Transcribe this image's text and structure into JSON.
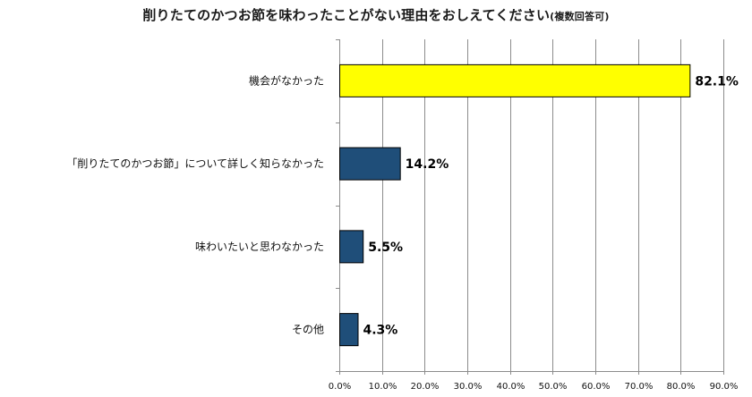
{
  "title": {
    "main": "削りたてのかつお節を味わったことがない理由をおしえてください",
    "note": "(複数回答可)"
  },
  "chart_data": {
    "type": "bar",
    "orientation": "horizontal",
    "title": "削りたてのかつお節を味わったことがない理由をおしえてください(複数回答可)",
    "categories": [
      "機会がなかった",
      "「削りたてのかつお節」について詳しく知らなかった",
      "味わいたいと思わなかった",
      "その他"
    ],
    "values": [
      82.1,
      14.2,
      5.5,
      4.3
    ],
    "value_labels": [
      "82.1%",
      "14.2%",
      "5.5%",
      "4.3%"
    ],
    "bar_colors": [
      "#FFFF00",
      "#1F4E79",
      "#1F4E79",
      "#1F4E79"
    ],
    "xlim": [
      0,
      90
    ],
    "x_ticks": [
      0,
      10,
      20,
      30,
      40,
      50,
      60,
      70,
      80,
      90
    ],
    "x_tick_labels": [
      "0.0%",
      "10.0%",
      "20.0%",
      "30.0%",
      "40.0%",
      "50.0%",
      "60.0%",
      "70.0%",
      "80.0%",
      "90.0%"
    ],
    "xlabel": "",
    "ylabel": "",
    "grid": true,
    "legend": "none"
  }
}
